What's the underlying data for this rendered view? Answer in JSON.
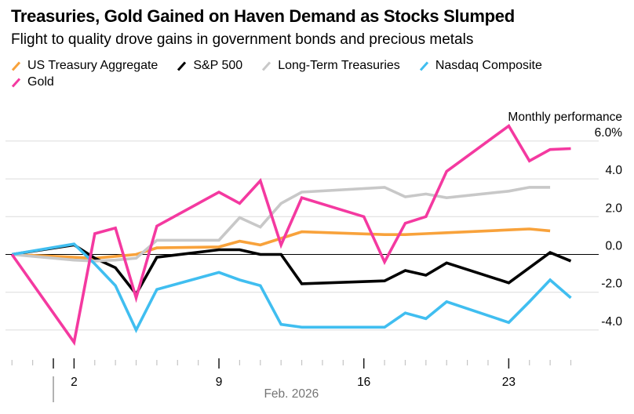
{
  "header": {
    "title": "Treasuries, Gold Gained on Haven Demand as Stocks Slumped",
    "subtitle": "Flight to quality drove gains in government bonds and precious metals"
  },
  "legend": {
    "rows": [
      [
        {
          "label": "US Treasury Aggregate",
          "color": "#F8A23B"
        },
        {
          "label": "S&P 500",
          "color": "#000000"
        },
        {
          "label": "Long-Term Treasuries",
          "color": "#C8C8C8"
        },
        {
          "label": "Nasdaq Composite",
          "color": "#40BEF0"
        }
      ],
      [
        {
          "label": "Gold",
          "color": "#F439A0"
        }
      ]
    ]
  },
  "chart_data": {
    "type": "line",
    "title": "Treasuries, Gold Gained on Haven Demand as Stocks Slumped",
    "axis_label": "Monthly performance",
    "y_unit": "%",
    "ylim": [
      -5.2,
      7.2
    ],
    "grid": true,
    "legend_position": "top",
    "yticks": [
      {
        "value": 6,
        "label": "6.0%"
      },
      {
        "value": 4,
        "label": "4.0"
      },
      {
        "value": 2,
        "label": "2.0"
      },
      {
        "value": 0,
        "label": "0.0"
      },
      {
        "value": -2,
        "label": "-2.0"
      },
      {
        "value": -4,
        "label": "-4.0"
      }
    ],
    "x_axis": {
      "month_label": "Feb. 2026",
      "labeled_days": [
        {
          "day": 2,
          "label": "2"
        },
        {
          "day": 9,
          "label": "9"
        },
        {
          "day": 16,
          "label": "16"
        },
        {
          "day": 23,
          "label": "23"
        }
      ],
      "major_tick_days": [
        1,
        2,
        9,
        16,
        23
      ],
      "tick_start": "Jan 30",
      "tick_end": "Feb 26",
      "month_divider_day": 1
    },
    "colors": {
      "gridline": "#DCDCDC",
      "zero_line": "#000000",
      "minor_tick": "#C4C4C4",
      "major_tick": "#1A1A1A",
      "month_label": "#757575",
      "axis_text": "#000000"
    },
    "series": [
      {
        "name": "US Treasury Aggregate",
        "color": "#F8A23B",
        "points": [
          [
            "Jan 30",
            0
          ],
          [
            "Feb 2",
            -0.15
          ],
          [
            "Feb 3",
            -0.2
          ],
          [
            "Feb 4",
            -0.1
          ],
          [
            "Feb 5",
            0
          ],
          [
            "Feb 6",
            0.35
          ],
          [
            "Feb 9",
            0.4
          ],
          [
            "Feb 10",
            0.7
          ],
          [
            "Feb 11",
            0.5
          ],
          [
            "Feb 12",
            0.85
          ],
          [
            "Feb 13",
            1.2
          ],
          [
            "Feb 17",
            1.05
          ],
          [
            "Feb 18",
            1.05
          ],
          [
            "Feb 19",
            1.1
          ],
          [
            "Feb 20",
            1.15
          ],
          [
            "Feb 23",
            1.3
          ],
          [
            "Feb 24",
            1.35
          ],
          [
            "Feb 25",
            1.25
          ]
        ]
      },
      {
        "name": "S&P 500",
        "color": "#000000",
        "points": [
          [
            "Jan 30",
            0
          ],
          [
            "Feb 2",
            0.5
          ],
          [
            "Feb 3",
            -0.2
          ],
          [
            "Feb 4",
            -0.7
          ],
          [
            "Feb 5",
            -2.1
          ],
          [
            "Feb 6",
            -0.15
          ],
          [
            "Feb 9",
            0.25
          ],
          [
            "Feb 10",
            0.25
          ],
          [
            "Feb 11",
            0
          ],
          [
            "Feb 12",
            0
          ],
          [
            "Feb 13",
            -1.55
          ],
          [
            "Feb 17",
            -1.4
          ],
          [
            "Feb 18",
            -0.85
          ],
          [
            "Feb 19",
            -1.1
          ],
          [
            "Feb 20",
            -0.45
          ],
          [
            "Feb 23",
            -1.5
          ],
          [
            "Feb 24",
            -0.7
          ],
          [
            "Feb 25",
            0.1
          ],
          [
            "Feb 26",
            -0.35
          ]
        ]
      },
      {
        "name": "Long-Term Treasuries",
        "color": "#C8C8C8",
        "points": [
          [
            "Jan 30",
            0
          ],
          [
            "Feb 2",
            -0.3
          ],
          [
            "Feb 3",
            -0.35
          ],
          [
            "Feb 4",
            -0.3
          ],
          [
            "Feb 5",
            -0.2
          ],
          [
            "Feb 6",
            0.75
          ],
          [
            "Feb 9",
            0.75
          ],
          [
            "Feb 10",
            1.95
          ],
          [
            "Feb 11",
            1.45
          ],
          [
            "Feb 12",
            2.7
          ],
          [
            "Feb 13",
            3.3
          ],
          [
            "Feb 17",
            3.55
          ],
          [
            "Feb 18",
            3.05
          ],
          [
            "Feb 19",
            3.2
          ],
          [
            "Feb 20",
            3.0
          ],
          [
            "Feb 23",
            3.35
          ],
          [
            "Feb 24",
            3.55
          ],
          [
            "Feb 25",
            3.55
          ]
        ]
      },
      {
        "name": "Nasdaq Composite",
        "color": "#40BEF0",
        "points": [
          [
            "Jan 30",
            0
          ],
          [
            "Feb 2",
            0.55
          ],
          [
            "Feb 3",
            -0.5
          ],
          [
            "Feb 4",
            -1.65
          ],
          [
            "Feb 5",
            -4.0
          ],
          [
            "Feb 6",
            -1.85
          ],
          [
            "Feb 9",
            -0.95
          ],
          [
            "Feb 10",
            -1.35
          ],
          [
            "Feb 11",
            -1.65
          ],
          [
            "Feb 12",
            -3.7
          ],
          [
            "Feb 13",
            -3.85
          ],
          [
            "Feb 17",
            -3.85
          ],
          [
            "Feb 18",
            -3.1
          ],
          [
            "Feb 19",
            -3.4
          ],
          [
            "Feb 20",
            -2.5
          ],
          [
            "Feb 23",
            -3.6
          ],
          [
            "Feb 24",
            -2.5
          ],
          [
            "Feb 25",
            -1.35
          ],
          [
            "Feb 26",
            -2.3
          ]
        ]
      },
      {
        "name": "Gold",
        "color": "#F439A0",
        "points": [
          [
            "Jan 30",
            0
          ],
          [
            "Feb 2",
            -4.65
          ],
          [
            "Feb 3",
            1.1
          ],
          [
            "Feb 4",
            1.4
          ],
          [
            "Feb 5",
            -2.3
          ],
          [
            "Feb 6",
            1.5
          ],
          [
            "Feb 9",
            3.3
          ],
          [
            "Feb 10",
            2.7
          ],
          [
            "Feb 11",
            3.9
          ],
          [
            "Feb 12",
            0.5
          ],
          [
            "Feb 13",
            3.0
          ],
          [
            "Feb 16",
            2.0
          ],
          [
            "Feb 17",
            -0.4
          ],
          [
            "Feb 18",
            1.65
          ],
          [
            "Feb 19",
            2.0
          ],
          [
            "Feb 20",
            4.4
          ],
          [
            "Feb 23",
            6.8
          ],
          [
            "Feb 24",
            4.95
          ],
          [
            "Feb 25",
            5.55
          ],
          [
            "Feb 26",
            5.6
          ]
        ]
      }
    ]
  }
}
